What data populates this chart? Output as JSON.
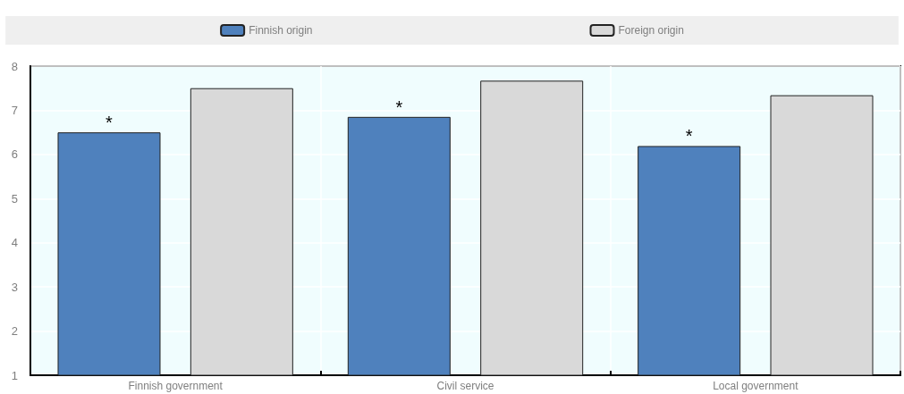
{
  "chart_data": {
    "type": "bar",
    "categories": [
      "Finnish government",
      "Civil service",
      "Local government"
    ],
    "series": [
      {
        "name": "Finnish origin",
        "color": "#4f81bd",
        "values": [
          6.5,
          6.85,
          6.19
        ]
      },
      {
        "name": "Foreign origin",
        "color": "#d9d9d9",
        "values": [
          7.5,
          7.67,
          7.34
        ]
      }
    ],
    "ylim": [
      1,
      8
    ],
    "yticks": [
      1,
      2,
      3,
      4,
      5,
      6,
      7,
      8
    ],
    "grid": true,
    "legend": "top",
    "annotations": [
      "*",
      "*",
      "*"
    ]
  }
}
